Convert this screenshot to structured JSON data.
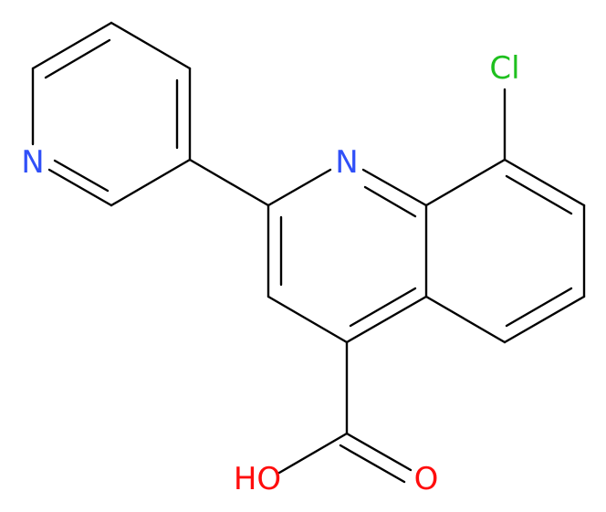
{
  "atoms": {
    "chlorine": "Cl",
    "quinoline_nitrogen": "N",
    "pyridine_nitrogen": "N",
    "hydroxyl": "HO",
    "carbonyl_oxygen": "O"
  }
}
